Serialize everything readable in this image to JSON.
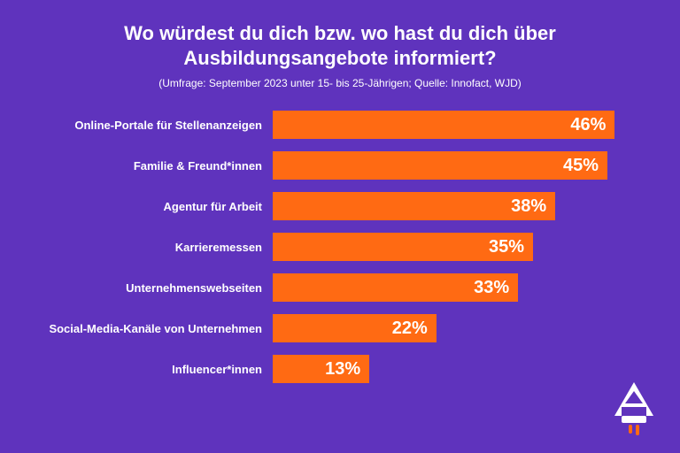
{
  "title_line1": "Wo würdest du dich bzw. wo hast du dich über",
  "title_line2": "Ausbildungsangebote informiert?",
  "subtitle": "(Umfrage: September 2023 unter 15- bis 25-Jährigen; Quelle: Innofact, WJD)",
  "chart": {
    "type": "bar-horizontal",
    "background_color": "#5f33bd",
    "bar_color": "#ff6a13",
    "text_color": "#ffffff",
    "title_fontsize": 22,
    "subtitle_fontsize": 12,
    "label_fontsize": 13,
    "value_fontsize": 20,
    "max_value": 50,
    "label_width": 258,
    "items": [
      {
        "label": "Online-Portale für Stellenanzeigen",
        "value": 46,
        "display": "46%"
      },
      {
        "label": "Familie & Freund*innen",
        "value": 45,
        "display": "45%"
      },
      {
        "label": "Agentur für Arbeit",
        "value": 38,
        "display": "38%"
      },
      {
        "label": "Karrieremessen",
        "value": 35,
        "display": "35%"
      },
      {
        "label": "Unternehmenswebseiten",
        "value": 33,
        "display": "33%"
      },
      {
        "label": "Social-Media-Kanäle von Unternehmen",
        "value": 22,
        "display": "22%"
      },
      {
        "label": "Influencer*innen",
        "value": 13,
        "display": "13%"
      }
    ]
  },
  "logo": {
    "letter_color": "#ffffff",
    "accent_color": "#ff6a13"
  }
}
